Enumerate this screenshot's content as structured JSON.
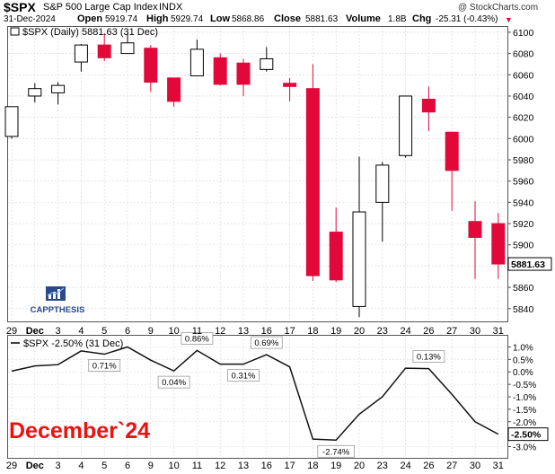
{
  "header": {
    "symbol": "$SPX",
    "name": "S&P 500 Large Cap Index",
    "exchange": "INDX",
    "credit": "@ StockCharts.com",
    "date": "31-Dec-2024",
    "open_label": "Open",
    "open": "5919.74",
    "high_label": "High",
    "high": "5929.74",
    "low_label": "Low",
    "low": "5868.86",
    "close_label": "Close",
    "close": "5881.63",
    "volume_label": "Volume",
    "volume": "1.8B",
    "chg_label": "Chg",
    "chg": "-25.31 (-0.43%)"
  },
  "price_legend": "$SPX (Daily) 5881.63 (31 Dec)",
  "pct_legend": "$SPX -2.50% (31 Dec)",
  "last_price_label": "5881.63",
  "last_pct_label": "-2.50%",
  "watermark": "December`24",
  "logo_text": "CAPPTHESIS",
  "colors": {
    "up": "#000000",
    "down": "#e3083a",
    "line": "#111111",
    "grid": "#d4d4d4",
    "watermark": "#ee1111",
    "logo": "#2a4a8a"
  },
  "chart_data": [
    {
      "type": "candlestick",
      "title": "$SPX (Daily) 5881.63 (31 Dec)",
      "x_tick_labels": [
        "29",
        "Dec",
        "3",
        "4",
        "5",
        "6",
        "9",
        "10",
        "11",
        "12",
        "13",
        "16",
        "17",
        "18",
        "19",
        "20",
        "23",
        "24",
        "26",
        "27",
        "30",
        "31"
      ],
      "ylim": [
        5828,
        6105
      ],
      "y_ticks": [
        5840,
        5860,
        5880,
        5900,
        5920,
        5940,
        5960,
        5980,
        6000,
        6020,
        6040,
        6060,
        6080,
        6100
      ],
      "candles": [
        {
          "x": "29",
          "open": 6002,
          "high": 6030,
          "low": 6000,
          "close": 6030
        },
        {
          "x": "Dec",
          "open": 6040,
          "high": 6052,
          "low": 6034,
          "close": 6047
        },
        {
          "x": "3",
          "open": 6043,
          "high": 6053,
          "low": 6032,
          "close": 6050
        },
        {
          "x": "4",
          "open": 6072,
          "high": 6089,
          "low": 6063,
          "close": 6088
        },
        {
          "x": "5",
          "open": 6088,
          "high": 6099,
          "low": 6073,
          "close": 6076
        },
        {
          "x": "6",
          "open": 6080,
          "high": 6099,
          "low": 6080,
          "close": 6090
        },
        {
          "x": "9",
          "open": 6085,
          "high": 6088,
          "low": 6044,
          "close": 6053
        },
        {
          "x": "10",
          "open": 6057,
          "high": 6057,
          "low": 6030,
          "close": 6035
        },
        {
          "x": "11",
          "open": 6059,
          "high": 6093,
          "low": 6059,
          "close": 6084
        },
        {
          "x": "12",
          "open": 6076,
          "high": 6080,
          "low": 6050,
          "close": 6051
        },
        {
          "x": "13",
          "open": 6071,
          "high": 6075,
          "low": 6040,
          "close": 6051
        },
        {
          "x": "16",
          "open": 6065,
          "high": 6086,
          "low": 6063,
          "close": 6075
        },
        {
          "x": "17",
          "open": 6052,
          "high": 6057,
          "low": 6035,
          "close": 6049
        },
        {
          "x": "18",
          "open": 6047,
          "high": 6070,
          "low": 5866,
          "close": 5871
        },
        {
          "x": "19",
          "open": 5912,
          "high": 5935,
          "low": 5865,
          "close": 5867
        },
        {
          "x": "20",
          "open": 5842,
          "high": 5983,
          "low": 5832,
          "close": 5931
        },
        {
          "x": "23",
          "open": 5940,
          "high": 5978,
          "low": 5903,
          "close": 5975
        },
        {
          "x": "24",
          "open": 5984,
          "high": 6040,
          "low": 5982,
          "close": 6040
        },
        {
          "x": "26",
          "open": 6037,
          "high": 6049,
          "low": 6007,
          "close": 6025
        },
        {
          "x": "27",
          "open": 6006,
          "high": 6006,
          "low": 5932,
          "close": 5970
        },
        {
          "x": "30",
          "open": 5922,
          "high": 5941,
          "low": 5868,
          "close": 5907
        },
        {
          "x": "31",
          "open": 5920,
          "high": 5930,
          "low": 5868,
          "close": 5882
        }
      ]
    },
    {
      "type": "line",
      "title": "$SPX -2.50% (31 Dec)",
      "x": [
        "29",
        "Dec",
        "3",
        "4",
        "5",
        "6",
        "9",
        "10",
        "11",
        "12",
        "13",
        "16",
        "17",
        "18",
        "19",
        "20",
        "23",
        "24",
        "26",
        "27",
        "30",
        "31"
      ],
      "values": [
        0.03,
        0.24,
        0.29,
        0.84,
        0.71,
        1.0,
        0.47,
        0.04,
        0.86,
        0.31,
        0.31,
        0.69,
        0.2,
        -2.7,
        -2.74,
        -1.7,
        -1.0,
        0.15,
        0.13,
        -0.9,
        -2.0,
        -2.5
      ],
      "ylim": [
        -3.45,
        1.45
      ],
      "y_ticks": [
        1.0,
        0.5,
        0.0,
        -0.5,
        -1.0,
        -1.5,
        -2.0,
        -3.0
      ],
      "y_tick_labels": [
        "1.0%",
        "0.5%",
        "0.0%",
        "-0.5%",
        "-1.0%",
        "-1.5%",
        "-2.0%",
        "-3.0%"
      ],
      "annotations": [
        {
          "x": "5",
          "label": "0.71%"
        },
        {
          "x": "10",
          "label": "0.04%"
        },
        {
          "x": "11",
          "label": "0.86%"
        },
        {
          "x": "13",
          "label": "0.31%"
        },
        {
          "x": "16",
          "label": "0.69%"
        },
        {
          "x": "19",
          "label": "-2.74%"
        },
        {
          "x": "26",
          "label": "0.13%"
        }
      ]
    }
  ]
}
